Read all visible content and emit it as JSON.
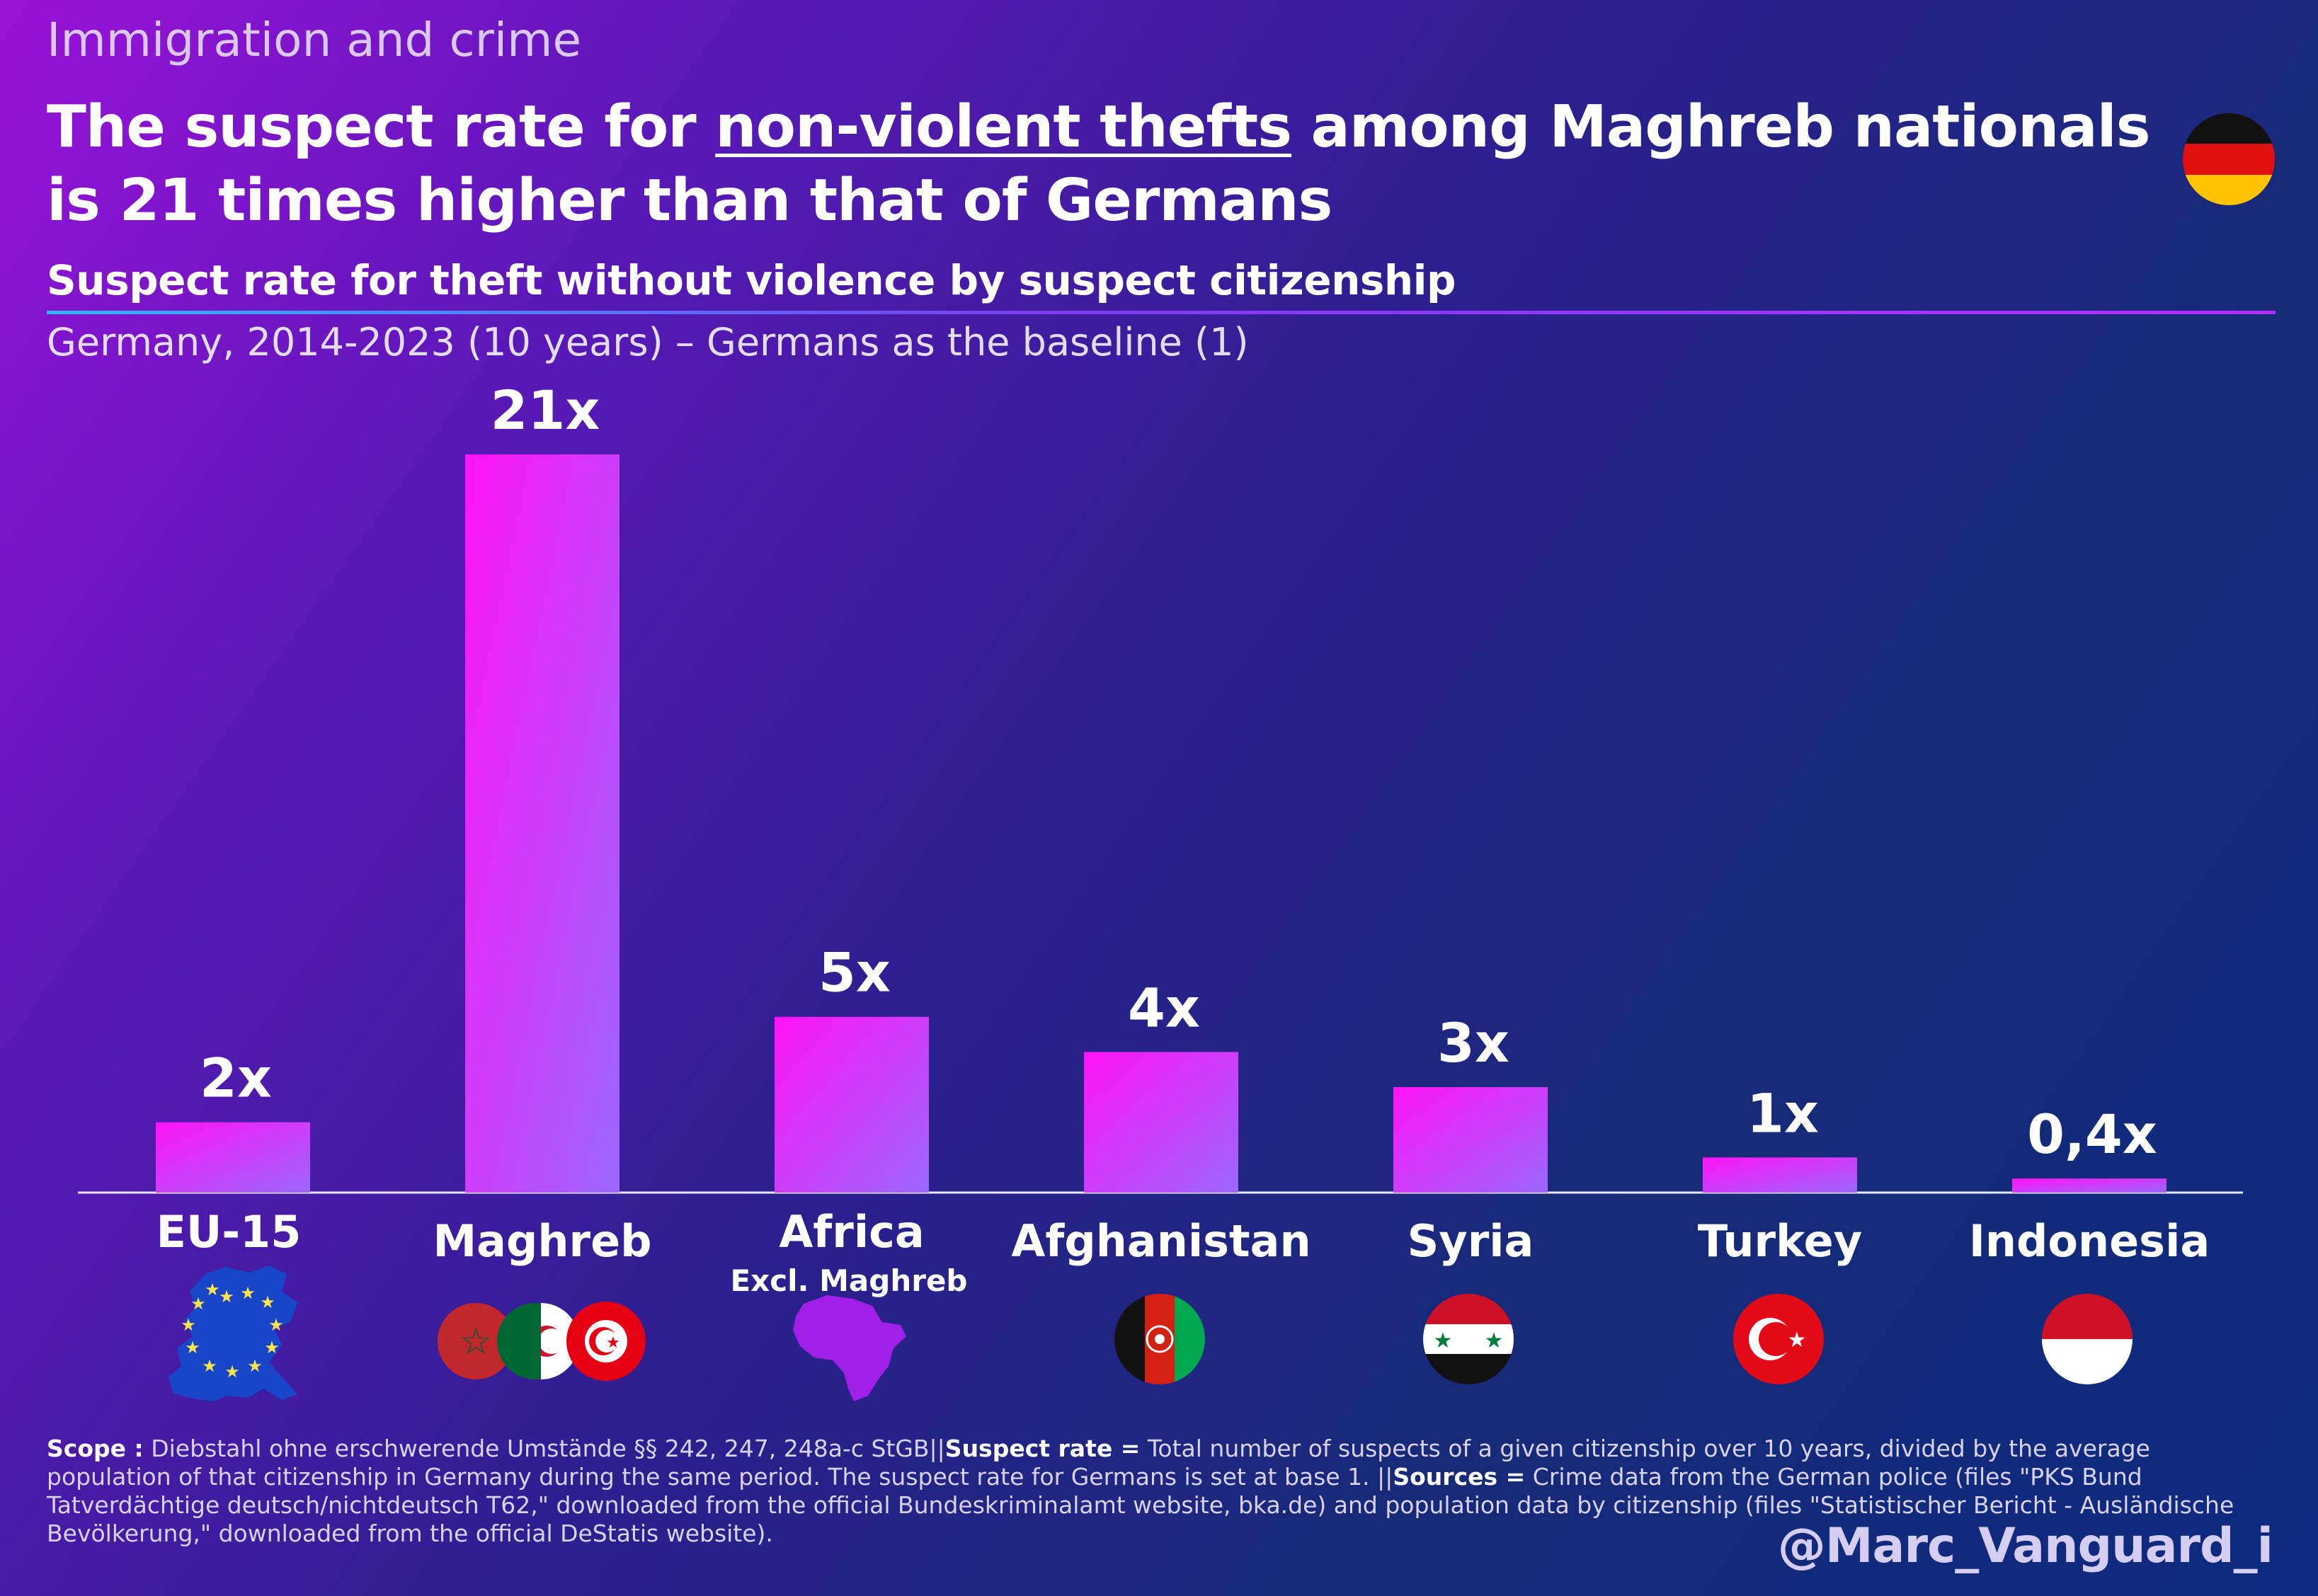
{
  "header": {
    "kicker": "Immigration and crime",
    "headline_before": "The suspect rate for ",
    "headline_underlined": "non-violent thefts",
    "headline_after": " among Maghreb nationals is 21 times higher than that of Germans",
    "chart_title": "Suspect rate for theft without violence by suspect citizenship",
    "subtitle": "Germany, 2014-2023 (10 years) – Germans as the baseline (1)",
    "country_flag_icon": "germany-flag-icon"
  },
  "chart_data": {
    "type": "bar",
    "title": "Suspect rate for theft without violence by suspect citizenship",
    "subtitle": "Germany, 2014-2023 (10 years) – Germans as the baseline (1)",
    "categories": [
      "EU-15",
      "Maghreb",
      "Africa",
      "Afghanistan",
      "Syria",
      "Turkey",
      "Indonesia"
    ],
    "category_sublabels": [
      "",
      "",
      "Excl. Maghreb",
      "",
      "",
      "",
      ""
    ],
    "values": [
      2,
      21,
      5,
      4,
      3,
      1,
      0.4
    ],
    "data_labels": [
      "2x",
      "21x",
      "5x",
      "4x",
      "3x",
      "1x",
      "0,4x"
    ],
    "category_icons": [
      "eu-map-icon",
      "maghreb-flags-icon",
      "africa-map-icon",
      "afghanistan-flag-icon",
      "syria-flag-icon",
      "turkey-flag-icon",
      "indonesia-flag-icon"
    ],
    "ylim": [
      0,
      21
    ],
    "grid": false,
    "bar_colors": {
      "top": "#ff13f5",
      "bottom": "#9b67ff"
    }
  },
  "footnote": {
    "scope_label": "Scope :",
    "scope_text": " Diebstahl ohne erschwerende Umstände §§ 242, 247, 248a-c StGB|",
    "sep1": "|",
    "rate_label": "Suspect rate =",
    "rate_text": " Total number of suspects of a given citizenship over 10 years, divided by the average population of that citizenship in Germany during the same period. The suspect rate for Germans is set at base 1. |",
    "sep2": "|",
    "sources_label": "Sources =",
    "sources_text": " Crime data from the German police (files \"PKS Bund Tatverdächtige deutsch/nichtdeutsch T62,\" downloaded from the official Bundeskriminalamt website, bka.de) and population data by citizenship (files \"Statistischer Bericht - Ausländische Bevölkerung,\" downloaded from the official DeStatis website)."
  },
  "handle": "@Marc_Vanguard_i"
}
